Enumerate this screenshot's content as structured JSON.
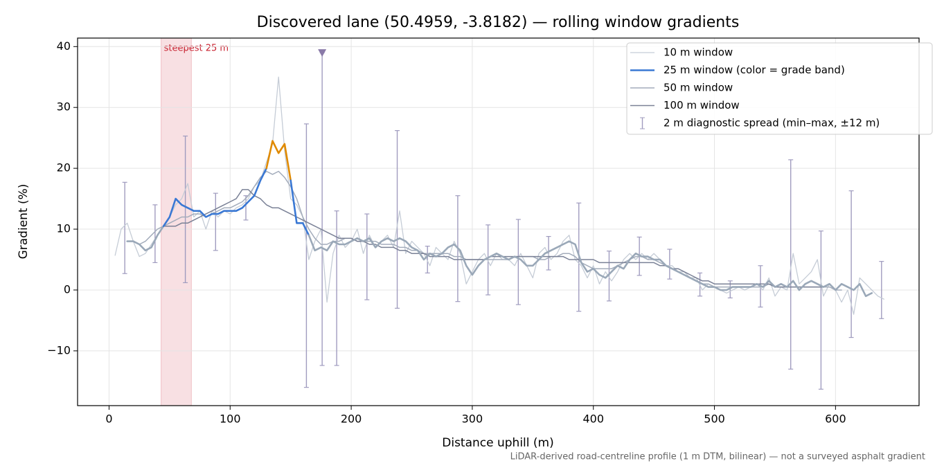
{
  "chart_data": {
    "type": "line",
    "title": "Discovered lane (50.4959, -3.8182) — rolling window gradients",
    "xlabel": "Distance uphill (m)",
    "ylabel": "Gradient (%)",
    "footnote": "LiDAR-derived road-centreline profile (1 m DTM, bilinear) — not a surveyed asphalt gradient",
    "xlim": [
      -26,
      669
    ],
    "ylim": [
      -19,
      41.4
    ],
    "xticks": [
      0,
      100,
      200,
      300,
      400,
      500,
      600
    ],
    "yticks": [
      {
        "value": -10,
        "label": "−10"
      },
      0,
      10,
      20,
      30,
      40
    ],
    "grid": true,
    "legend": "upper right",
    "highlight": {
      "x0": 43,
      "x1": 68,
      "label": "steepest 25 m",
      "color": "#e8a0a8"
    },
    "x": [
      5,
      10,
      15,
      20,
      25,
      30,
      35,
      40,
      45,
      50,
      55,
      60,
      65,
      70,
      75,
      80,
      85,
      90,
      95,
      100,
      105,
      110,
      115,
      120,
      125,
      130,
      135,
      140,
      145,
      150,
      155,
      160,
      165,
      170,
      175,
      180,
      185,
      190,
      195,
      200,
      205,
      210,
      215,
      220,
      225,
      230,
      235,
      240,
      245,
      250,
      255,
      260,
      265,
      270,
      275,
      280,
      285,
      290,
      295,
      300,
      305,
      310,
      315,
      320,
      325,
      330,
      335,
      340,
      345,
      350,
      355,
      360,
      365,
      370,
      375,
      380,
      385,
      390,
      395,
      400,
      405,
      410,
      415,
      420,
      425,
      430,
      435,
      440,
      445,
      450,
      455,
      460,
      465,
      470,
      475,
      480,
      485,
      490,
      495,
      500,
      505,
      510,
      515,
      520,
      525,
      530,
      535,
      540,
      545,
      550,
      555,
      560,
      565,
      570,
      575,
      580,
      585,
      590,
      595,
      600,
      605,
      610,
      615,
      620,
      625,
      630,
      635,
      640
    ],
    "series": [
      {
        "name": "10 m window",
        "color": "#c5ccd6",
        "width": 1.3,
        "values": [
          5.7,
          10,
          11,
          8,
          5.5,
          6,
          7.5,
          9,
          10.5,
          12,
          14,
          15,
          17.5,
          12,
          13,
          10,
          13,
          12,
          13,
          12.5,
          13.5,
          14,
          15,
          17,
          18,
          21,
          24,
          35,
          23,
          15,
          14,
          12,
          5,
          8,
          10,
          -2,
          6,
          9,
          7,
          8,
          10,
          6,
          9,
          7,
          8,
          9,
          7,
          13,
          6,
          8,
          7,
          6,
          4,
          7,
          6,
          5,
          8,
          6,
          1,
          3,
          5,
          6,
          4,
          6,
          5,
          5,
          4,
          6,
          4,
          2,
          6,
          7,
          5,
          6,
          8,
          9,
          5,
          4,
          2,
          4,
          1,
          3,
          1.5,
          3,
          5,
          6,
          5,
          6,
          5,
          6,
          5,
          4,
          4,
          3,
          3,
          2,
          2,
          0,
          1,
          0.5,
          0,
          -0.5,
          0,
          0.5,
          0,
          0.5,
          1,
          0,
          2,
          -1,
          0.5,
          0,
          6,
          1,
          2,
          3,
          5,
          -1,
          1,
          0,
          -2,
          0,
          -4,
          2,
          1,
          0,
          -1,
          -1.5
        ]
      },
      {
        "name": "25 m window (color = grade band)",
        "color": "#3a78d4",
        "width": 2.6,
        "grade_bands": {
          "thresholds": [
            10,
            20
          ],
          "colors": [
            "#9aa8b8",
            "#3a78d4",
            "#e08a00"
          ]
        },
        "values": [
          null,
          null,
          8,
          8,
          7.5,
          6.5,
          7,
          9,
          10.5,
          12,
          15,
          14,
          13.5,
          13,
          13,
          12,
          12.5,
          12.5,
          13,
          13,
          13,
          13.5,
          14.5,
          15.5,
          18,
          20,
          24.5,
          22.5,
          24,
          18,
          11,
          11,
          9,
          6.5,
          7,
          6.5,
          8,
          7.5,
          7.5,
          8,
          8.5,
          8,
          8.5,
          7,
          8,
          8.5,
          8,
          8.5,
          8,
          7,
          6.5,
          5,
          6,
          5.5,
          6,
          7,
          7.5,
          6.5,
          4,
          2.5,
          4,
          5,
          5.5,
          6,
          5.5,
          5,
          5.5,
          5,
          4,
          4,
          5,
          6,
          6.5,
          7,
          7.5,
          8,
          7.5,
          4.5,
          3,
          3.5,
          2.5,
          2,
          3,
          4,
          3.5,
          5,
          6,
          5.5,
          5.5,
          5,
          5,
          4,
          3.5,
          3,
          2.5,
          2,
          1.5,
          1,
          0.5,
          0.5,
          0,
          0,
          0.5,
          0.5,
          0.5,
          0.5,
          1,
          0.5,
          1.5,
          0.5,
          1,
          0.5,
          1.5,
          0,
          1,
          1.5,
          1,
          0.5,
          1,
          0,
          1,
          0.5,
          0,
          1,
          -1,
          -0.5,
          null,
          null
        ]
      },
      {
        "name": "50 m window",
        "color": "#a3acbb",
        "width": 1.5,
        "values": [
          null,
          null,
          null,
          8,
          7.5,
          8,
          9,
          10,
          10.5,
          11,
          11.5,
          12,
          12,
          12.5,
          12.5,
          12,
          12.5,
          13,
          13.5,
          13.5,
          14,
          14.5,
          15.5,
          17,
          18.5,
          19.5,
          19,
          19.5,
          18.5,
          17,
          15,
          12,
          10,
          8.5,
          7.5,
          7.5,
          8,
          8,
          8.5,
          8.5,
          8,
          8,
          8,
          8,
          7.5,
          7.5,
          7.5,
          7,
          7,
          6.5,
          6.5,
          6,
          6,
          6,
          6,
          6,
          5.5,
          5.5,
          5,
          5,
          5,
          5,
          5,
          5,
          5,
          5,
          5.5,
          5.5,
          5.5,
          5.5,
          5,
          5,
          5.5,
          5.5,
          6,
          6,
          5.5,
          4.5,
          4,
          3.5,
          3.5,
          3.5,
          3.5,
          4,
          4.5,
          5,
          5.5,
          5.5,
          5,
          5,
          4.5,
          4,
          3.5,
          3,
          2.5,
          2,
          1.5,
          1,
          1,
          0.5,
          0.5,
          0.5,
          0.5,
          0.5,
          0.5,
          0.5,
          0.5,
          0.5,
          1,
          0.5,
          0.5,
          0.5,
          0.5,
          0.5,
          0.5,
          0.5,
          0.5,
          0.5,
          0.5,
          0,
          0,
          null,
          null,
          null,
          null,
          null,
          null,
          null
        ]
      },
      {
        "name": "100 m window",
        "color": "#7a8196",
        "width": 1.5,
        "values": [
          null,
          null,
          null,
          null,
          null,
          null,
          null,
          null,
          10.5,
          10.5,
          10.5,
          11,
          11,
          11.5,
          12,
          12.5,
          13,
          13.5,
          14,
          14.5,
          15,
          16.5,
          16.5,
          15.5,
          15,
          14,
          13.5,
          13.5,
          13,
          12.5,
          12,
          11.5,
          11,
          10.5,
          10,
          9.5,
          9,
          8.5,
          8.5,
          8.5,
          8,
          8,
          7.5,
          7.5,
          7,
          7,
          7,
          6.5,
          6.5,
          6,
          6,
          6,
          5.5,
          5.5,
          5.5,
          5.5,
          5,
          5,
          5,
          5,
          5,
          5,
          5.5,
          5.5,
          5.5,
          5.5,
          5.5,
          5.5,
          5.5,
          5.5,
          5.5,
          5.5,
          5.5,
          5.5,
          5.5,
          5,
          5,
          5,
          5,
          5,
          4.5,
          4.5,
          4.5,
          4.5,
          4.5,
          4.5,
          4.5,
          4.5,
          4.5,
          4.5,
          4,
          4,
          3.5,
          3.5,
          3,
          2.5,
          2,
          1.5,
          1.5,
          1,
          1,
          1,
          1,
          1,
          1,
          1,
          1,
          1,
          1,
          0.5,
          0.5,
          0.5,
          0.5,
          0.5,
          0.5,
          0.5,
          0.5,
          0.5,
          null,
          null,
          null,
          null,
          null,
          null,
          null,
          null,
          null,
          null
        ]
      }
    ],
    "errorbars": {
      "name": "2 m diagnostic spread (min–max, ±12 m)",
      "color": "#a09cbf",
      "x": [
        13,
        38,
        63,
        88,
        113,
        163,
        176,
        188,
        213,
        238,
        263,
        288,
        313,
        338,
        363,
        388,
        413,
        438,
        463,
        488,
        513,
        538,
        563,
        588,
        613,
        638
      ],
      "lo": [
        2.7,
        4.5,
        1.2,
        6.5,
        11.5,
        -16,
        -12.4,
        -12.4,
        -1.6,
        -3,
        2.8,
        -1.9,
        -0.8,
        -2.4,
        3.3,
        -3.5,
        -1.8,
        2.4,
        1.8,
        -1,
        -1.3,
        -2.8,
        -13,
        -16.3,
        -7.8,
        -4.7
      ],
      "hi": [
        17.7,
        14,
        25.3,
        15.9,
        15.5,
        27.3,
        39,
        13,
        12.5,
        26.2,
        7.2,
        15.5,
        10.7,
        11.6,
        8.8,
        14.3,
        6.4,
        8.7,
        6.7,
        2.8,
        1.5,
        4,
        21.4,
        9.7,
        16.3,
        4.7
      ]
    },
    "marker": {
      "x": 176,
      "y": 39,
      "color": "#8a7aa8"
    }
  }
}
